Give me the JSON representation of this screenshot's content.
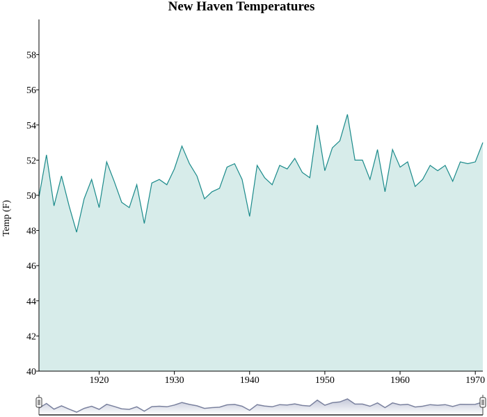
{
  "chart_data": {
    "type": "area",
    "title": "New Haven Temperatures",
    "xlabel": "",
    "ylabel": "Temp (F)",
    "xlim": [
      1912,
      1971
    ],
    "ylim": [
      40,
      60
    ],
    "x_ticks": [
      1920,
      1930,
      1940,
      1950,
      1960,
      1970
    ],
    "y_ticks": [
      40,
      42,
      44,
      46,
      48,
      50,
      52,
      54,
      56,
      58
    ],
    "grid": false,
    "legend": "none",
    "colors": {
      "line": "#1a8a8a",
      "fill": "#d7ecea",
      "navigator_line": "#7a819e",
      "navigator_fill": "#c3c7d8"
    },
    "x": [
      1912,
      1913,
      1914,
      1915,
      1916,
      1917,
      1918,
      1919,
      1920,
      1921,
      1922,
      1923,
      1924,
      1925,
      1926,
      1927,
      1928,
      1929,
      1930,
      1931,
      1932,
      1933,
      1934,
      1935,
      1936,
      1937,
      1938,
      1939,
      1940,
      1941,
      1942,
      1943,
      1944,
      1945,
      1946,
      1947,
      1948,
      1949,
      1950,
      1951,
      1952,
      1953,
      1954,
      1955,
      1956,
      1957,
      1958,
      1959,
      1960,
      1961,
      1962,
      1963,
      1964,
      1965,
      1966,
      1967,
      1968,
      1969,
      1970,
      1971
    ],
    "series": [
      {
        "values": [
          49.9,
          52.3,
          49.4,
          51.1,
          49.4,
          47.9,
          49.8,
          50.9,
          49.3,
          51.9,
          50.8,
          49.6,
          49.3,
          50.6,
          48.4,
          50.7,
          50.9,
          50.6,
          51.5,
          52.8,
          51.8,
          51.1,
          49.8,
          50.2,
          50.4,
          51.6,
          51.8,
          50.9,
          48.8,
          51.7,
          51.0,
          50.6,
          51.7,
          51.5,
          52.1,
          51.3,
          51.0,
          54.0,
          51.4,
          52.7,
          53.1,
          54.6,
          52.0,
          52.0,
          50.9,
          52.6,
          50.2,
          52.6,
          51.6,
          51.9,
          50.5,
          50.9,
          51.7,
          51.4,
          51.7,
          50.8,
          51.9,
          51.8,
          51.9,
          53.0
        ]
      }
    ],
    "navigator": {
      "handles": [
        "left-handle",
        "right-handle"
      ]
    }
  }
}
